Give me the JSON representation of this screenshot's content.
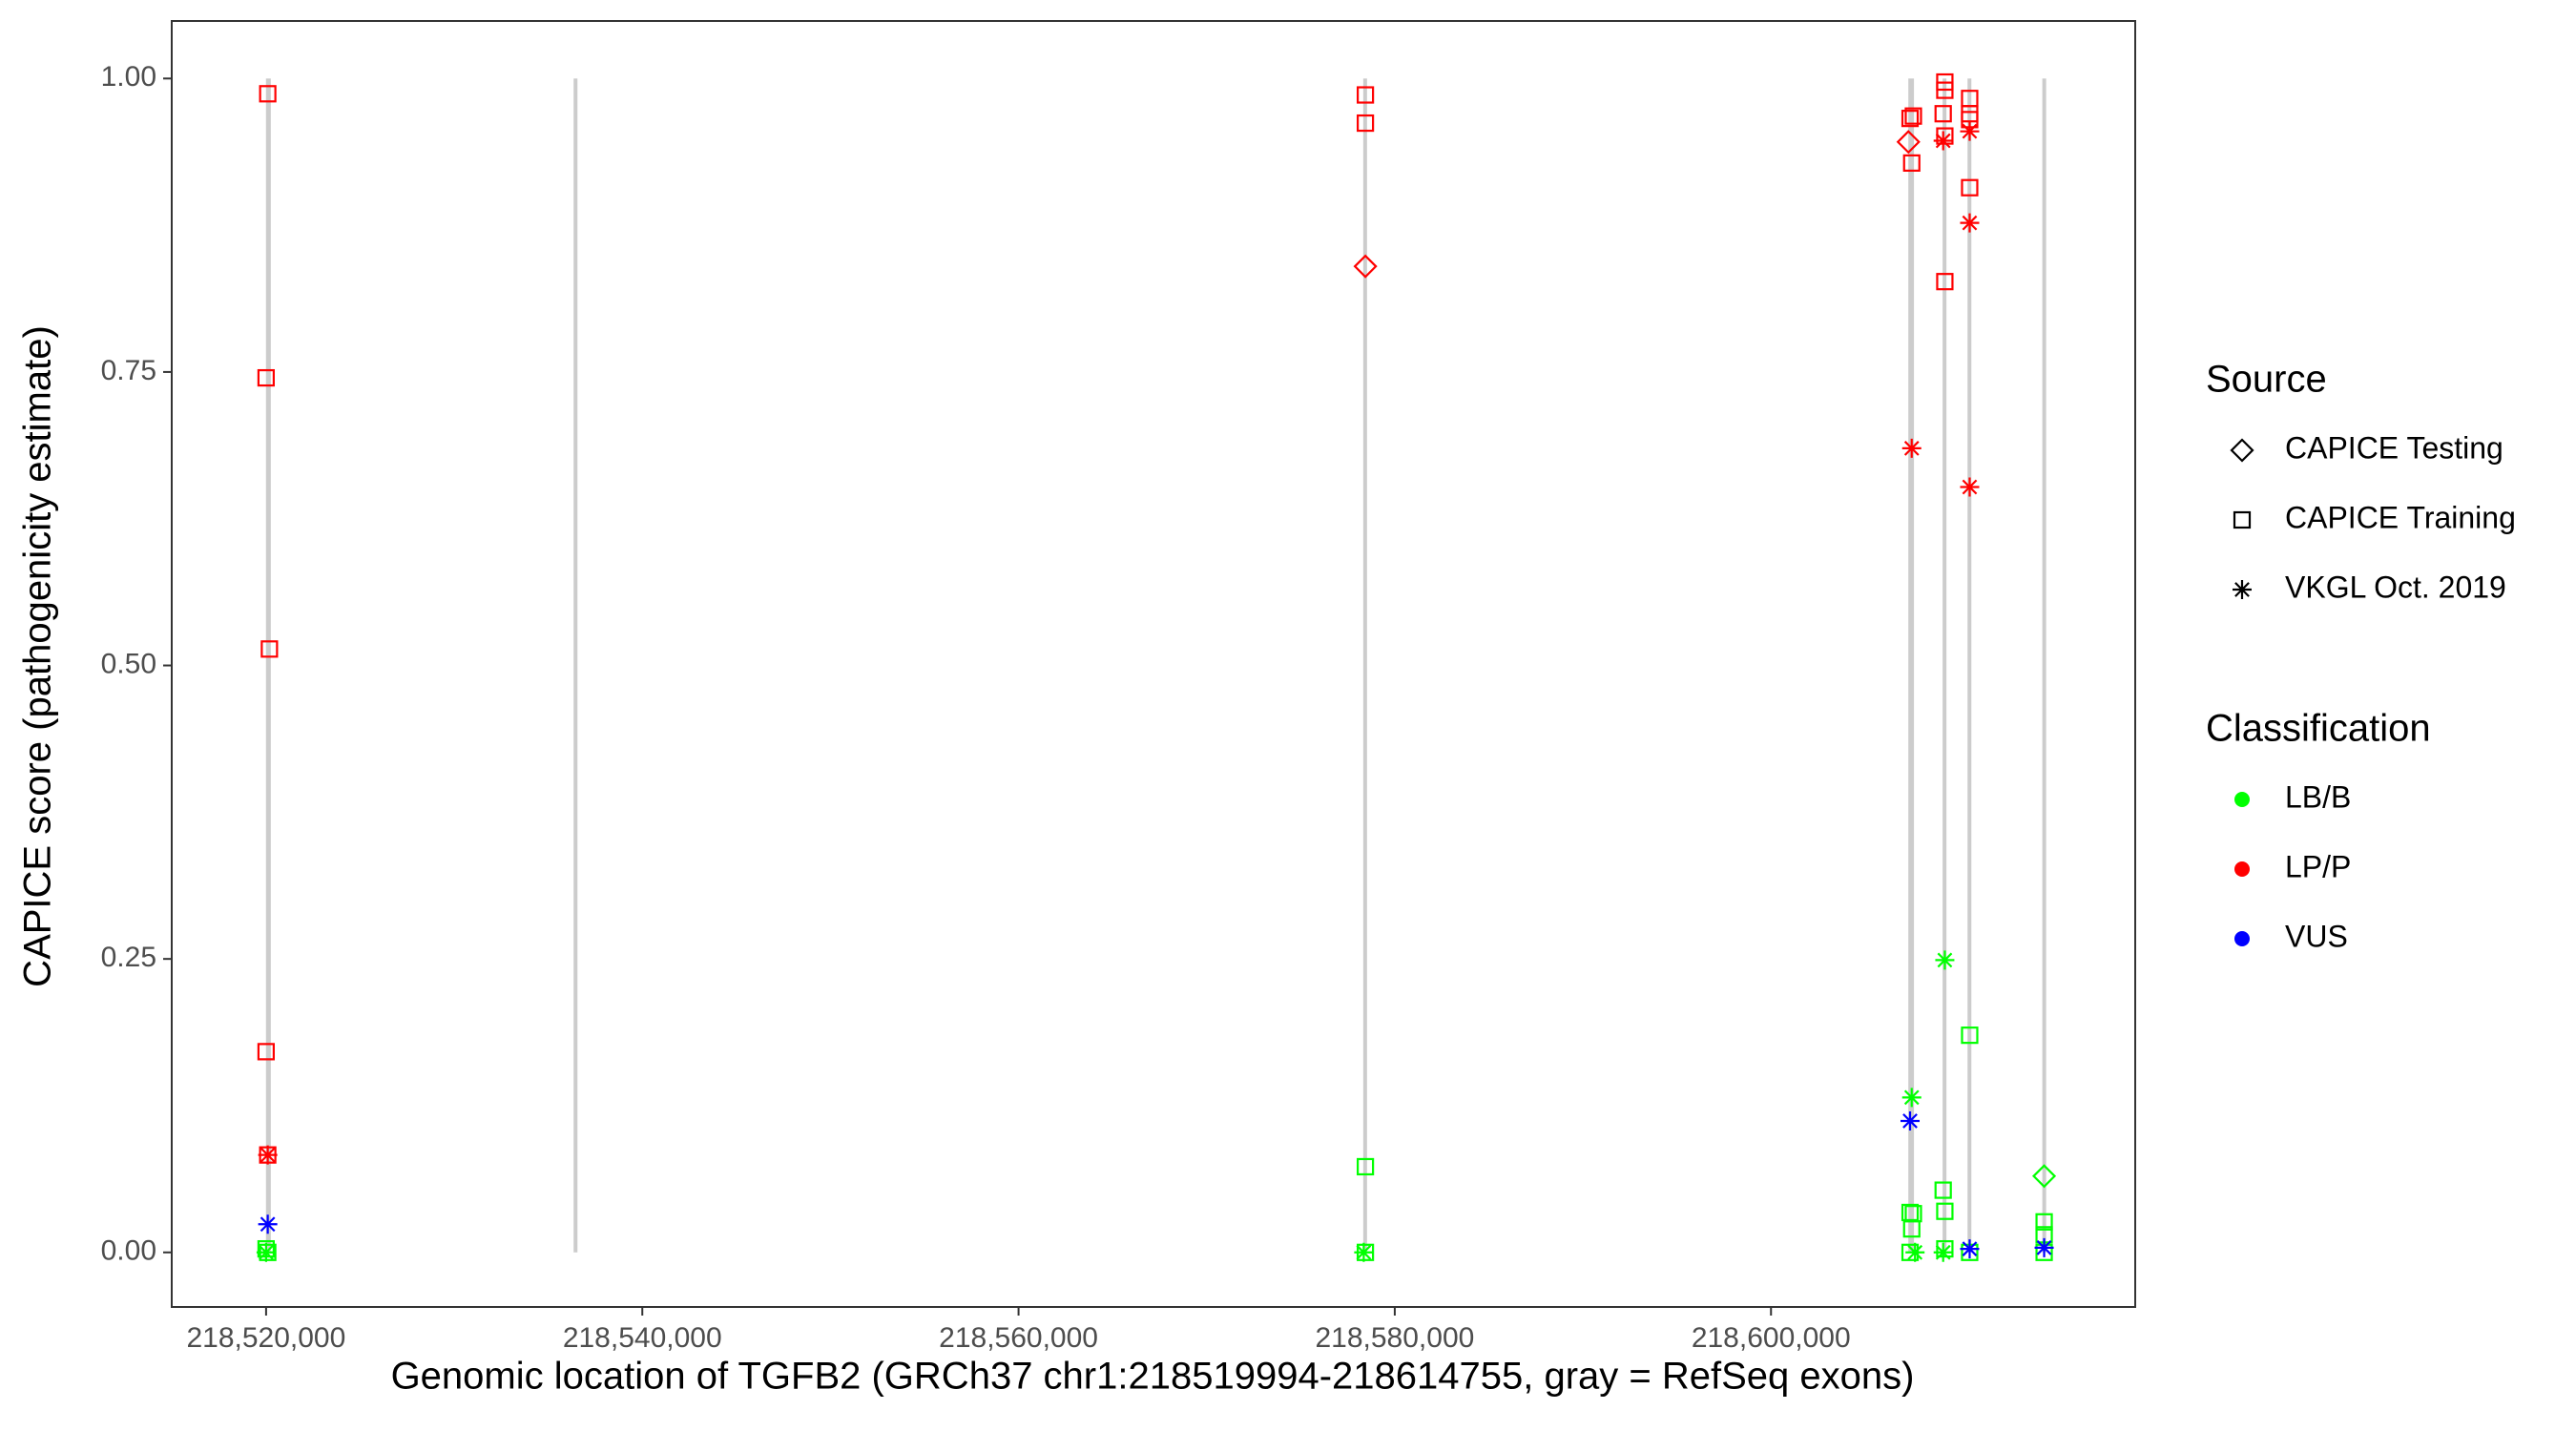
{
  "chart_data": {
    "type": "scatter",
    "x_label": "Genomic location of TGFB2 (GRCh37 chr1:218519994-218614755, gray = RefSeq exons)",
    "y_label": "CAPICE score (pathogenicity estimate)",
    "xlim": [
      218514984,
      218619362
    ],
    "ylim": [
      -0.0465,
      1.049
    ],
    "xticks": [
      {
        "value": 218520000,
        "label": "218,520,000"
      },
      {
        "value": 218540000,
        "label": "218,540,000"
      },
      {
        "value": 218560000,
        "label": "218,560,000"
      },
      {
        "value": 218580000,
        "label": "218,580,000"
      },
      {
        "value": 218600000,
        "label": "218,600,000"
      }
    ],
    "yticks": [
      {
        "value": 0,
        "label": "0.00"
      },
      {
        "value": 0.25,
        "label": "0.25"
      },
      {
        "value": 0.5,
        "label": "0.50"
      },
      {
        "value": 0.75,
        "label": "0.75"
      },
      {
        "value": 1,
        "label": "1.00"
      }
    ],
    "grid": false,
    "exon_color": "#cccccc",
    "exons": [
      {
        "start": 218519994,
        "end": 218520250,
        "y": [
          0,
          1
        ]
      },
      {
        "start": 218536400,
        "end": 218536500,
        "y": [
          0,
          1
        ]
      },
      {
        "start": 218578350,
        "end": 218578500,
        "y": [
          0,
          1
        ]
      },
      {
        "start": 218607300,
        "end": 218607600,
        "y": [
          0,
          1
        ]
      },
      {
        "start": 218609150,
        "end": 218609300,
        "y": [
          0,
          1
        ]
      },
      {
        "start": 218610480,
        "end": 218610620,
        "y": [
          0,
          1
        ]
      },
      {
        "start": 218614450,
        "end": 218614600,
        "y": [
          0,
          1
        ]
      }
    ],
    "legends": [
      {
        "title": "Source",
        "items": [
          {
            "name": "CAPICE Testing",
            "shape": "diamond"
          },
          {
            "name": "CAPICE Training",
            "shape": "square"
          },
          {
            "name": "VKGL Oct. 2019",
            "shape": "star"
          }
        ]
      },
      {
        "title": "Classification",
        "items": [
          {
            "name": "LB/B",
            "color": "#00ff00"
          },
          {
            "name": "LP/P",
            "color": "#ff0000"
          },
          {
            "name": "VUS",
            "color": "#0000ff"
          }
        ]
      }
    ],
    "points": [
      {
        "x": 218520088,
        "y": 0.987,
        "source": "CAPICE Training",
        "classification": "LP/P"
      },
      {
        "x": 218520000,
        "y": 0.745,
        "source": "CAPICE Training",
        "classification": "LP/P"
      },
      {
        "x": 218520176,
        "y": 0.514,
        "source": "CAPICE Training",
        "classification": "LP/P"
      },
      {
        "x": 218520000,
        "y": 0.171,
        "source": "CAPICE Training",
        "classification": "LP/P"
      },
      {
        "x": 218520088,
        "y": 0.083,
        "source": "CAPICE Training",
        "classification": "LP/P"
      },
      {
        "x": 218520088,
        "y": 0.083,
        "source": "VKGL Oct. 2019",
        "classification": "LP/P"
      },
      {
        "x": 218520088,
        "y": 0.024,
        "source": "VKGL Oct. 2019",
        "classification": "VUS"
      },
      {
        "x": 218520000,
        "y": 0.003,
        "source": "CAPICE Training",
        "classification": "LB/B"
      },
      {
        "x": 218520088,
        "y": 0.0,
        "source": "CAPICE Training",
        "classification": "LB/B"
      },
      {
        "x": 218520000,
        "y": 0.0,
        "source": "VKGL Oct. 2019",
        "classification": "LB/B"
      },
      {
        "x": 218578438,
        "y": 0.986,
        "source": "CAPICE Training",
        "classification": "LP/P"
      },
      {
        "x": 218578438,
        "y": 0.962,
        "source": "CAPICE Training",
        "classification": "LP/P"
      },
      {
        "x": 218578438,
        "y": 0.84,
        "source": "CAPICE Testing",
        "classification": "LP/P"
      },
      {
        "x": 218578438,
        "y": 0.073,
        "source": "CAPICE Training",
        "classification": "LB/B"
      },
      {
        "x": 218578438,
        "y": 0.0,
        "source": "CAPICE Training",
        "classification": "LB/B"
      },
      {
        "x": 218578350,
        "y": 0.0,
        "source": "VKGL Oct. 2019",
        "classification": "LB/B"
      },
      {
        "x": 218607393,
        "y": 0.966,
        "source": "CAPICE Training",
        "classification": "LP/P"
      },
      {
        "x": 218607569,
        "y": 0.968,
        "source": "CAPICE Training",
        "classification": "LP/P"
      },
      {
        "x": 218607481,
        "y": 0.928,
        "source": "CAPICE Training",
        "classification": "LP/P"
      },
      {
        "x": 218607305,
        "y": 0.946,
        "source": "CAPICE Testing",
        "classification": "LP/P"
      },
      {
        "x": 218607481,
        "y": 0.685,
        "source": "VKGL Oct. 2019",
        "classification": "LP/P"
      },
      {
        "x": 218607481,
        "y": 0.132,
        "source": "VKGL Oct. 2019",
        "classification": "LB/B"
      },
      {
        "x": 218607393,
        "y": 0.112,
        "source": "VKGL Oct. 2019",
        "classification": "VUS"
      },
      {
        "x": 218607393,
        "y": 0.034,
        "source": "CAPICE Training",
        "classification": "LB/B"
      },
      {
        "x": 218607569,
        "y": 0.033,
        "source": "CAPICE Training",
        "classification": "LB/B"
      },
      {
        "x": 218607481,
        "y": 0.02,
        "source": "CAPICE Training",
        "classification": "LB/B"
      },
      {
        "x": 218607393,
        "y": 0.0,
        "source": "CAPICE Training",
        "classification": "LB/B"
      },
      {
        "x": 218607657,
        "y": 0.0,
        "source": "VKGL Oct. 2019",
        "classification": "LB/B"
      },
      {
        "x": 218609241,
        "y": 0.997,
        "source": "CAPICE Training",
        "classification": "LP/P"
      },
      {
        "x": 218609241,
        "y": 0.99,
        "source": "CAPICE Training",
        "classification": "LP/P"
      },
      {
        "x": 218609153,
        "y": 0.97,
        "source": "CAPICE Training",
        "classification": "LP/P"
      },
      {
        "x": 218609241,
        "y": 0.951,
        "source": "CAPICE Training",
        "classification": "LP/P"
      },
      {
        "x": 218609241,
        "y": 0.827,
        "source": "CAPICE Training",
        "classification": "LP/P"
      },
      {
        "x": 218609153,
        "y": 0.947,
        "source": "VKGL Oct. 2019",
        "classification": "LP/P"
      },
      {
        "x": 218609241,
        "y": 0.249,
        "source": "VKGL Oct. 2019",
        "classification": "LB/B"
      },
      {
        "x": 218609153,
        "y": 0.053,
        "source": "CAPICE Training",
        "classification": "LB/B"
      },
      {
        "x": 218609241,
        "y": 0.035,
        "source": "CAPICE Training",
        "classification": "LB/B"
      },
      {
        "x": 218609241,
        "y": 0.003,
        "source": "CAPICE Training",
        "classification": "LB/B"
      },
      {
        "x": 218609153,
        "y": 0.0,
        "source": "VKGL Oct. 2019",
        "classification": "LB/B"
      },
      {
        "x": 218610561,
        "y": 0.983,
        "source": "CAPICE Training",
        "classification": "LP/P"
      },
      {
        "x": 218610561,
        "y": 0.97,
        "source": "CAPICE Training",
        "classification": "LP/P"
      },
      {
        "x": 218610561,
        "y": 0.965,
        "source": "CAPICE Training",
        "classification": "LP/P"
      },
      {
        "x": 218610561,
        "y": 0.907,
        "source": "CAPICE Training",
        "classification": "LP/P"
      },
      {
        "x": 218610561,
        "y": 0.955,
        "source": "VKGL Oct. 2019",
        "classification": "LP/P"
      },
      {
        "x": 218610561,
        "y": 0.877,
        "source": "VKGL Oct. 2019",
        "classification": "LP/P"
      },
      {
        "x": 218610561,
        "y": 0.652,
        "source": "VKGL Oct. 2019",
        "classification": "LP/P"
      },
      {
        "x": 218610561,
        "y": 0.185,
        "source": "CAPICE Training",
        "classification": "LB/B"
      },
      {
        "x": 218610561,
        "y": 0.0,
        "source": "CAPICE Training",
        "classification": "LB/B"
      },
      {
        "x": 218610561,
        "y": 0.003,
        "source": "VKGL Oct. 2019",
        "classification": "VUS"
      },
      {
        "x": 218614521,
        "y": 0.065,
        "source": "CAPICE Testing",
        "classification": "LB/B"
      },
      {
        "x": 218614521,
        "y": 0.026,
        "source": "CAPICE Training",
        "classification": "LB/B"
      },
      {
        "x": 218614521,
        "y": 0.015,
        "source": "CAPICE Training",
        "classification": "LB/B"
      },
      {
        "x": 218614521,
        "y": 0.0,
        "source": "CAPICE Training",
        "classification": "LB/B"
      },
      {
        "x": 218614521,
        "y": 0.004,
        "source": "VKGL Oct. 2019",
        "classification": "VUS"
      }
    ]
  }
}
